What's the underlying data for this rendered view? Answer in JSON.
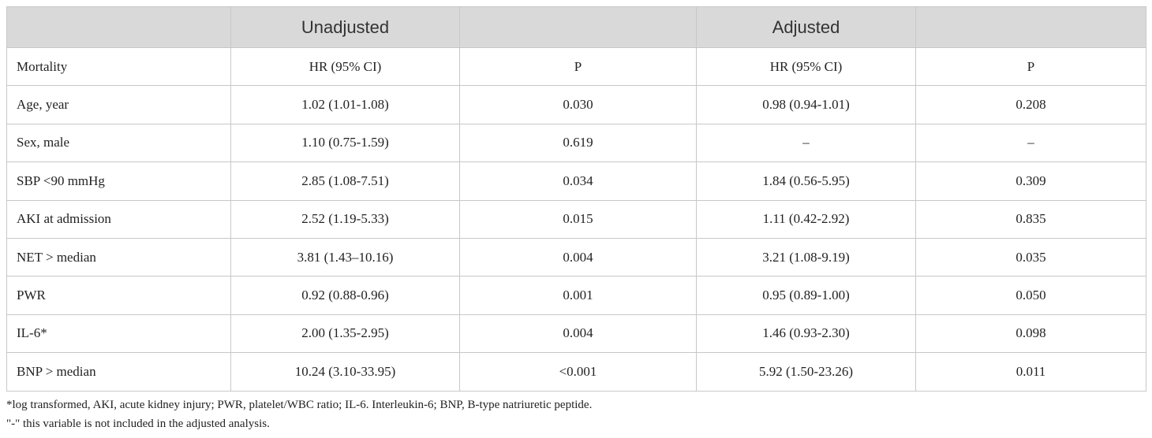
{
  "table": {
    "group_headers": [
      "",
      "Unadjusted",
      "",
      "Adjusted",
      ""
    ],
    "rows": [
      [
        "Mortality",
        "HR (95% CI)",
        "P",
        "HR (95% CI)",
        "P"
      ],
      [
        "Age, year",
        "1.02 (1.01-1.08)",
        "0.030",
        "0.98 (0.94-1.01)",
        "0.208"
      ],
      [
        "Sex, male",
        "1.10 (0.75-1.59)",
        "0.619",
        "–",
        "–"
      ],
      [
        "SBP <90 mmHg",
        "2.85 (1.08-7.51)",
        "0.034",
        "1.84 (0.56-5.95)",
        "0.309"
      ],
      [
        "AKI at admission",
        "2.52 (1.19-5.33)",
        "0.015",
        "1.11 (0.42-2.92)",
        "0.835"
      ],
      [
        "NET > median",
        "3.81 (1.43–10.16)",
        "0.004",
        "3.21 (1.08-9.19)",
        "0.035"
      ],
      [
        "PWR",
        "0.92 (0.88-0.96)",
        "0.001",
        "0.95 (0.89-1.00)",
        "0.050"
      ],
      [
        "IL-6*",
        "2.00 (1.35-2.95)",
        "0.004",
        "1.46 (0.93-2.30)",
        "0.098"
      ],
      [
        "BNP > median",
        "10.24 (3.10-33.95)",
        "<0.001",
        "5.92 (1.50-23.26)",
        "0.011"
      ]
    ]
  },
  "footnotes": [
    "*log transformed, AKI, acute kidney injury; PWR, platelet/WBC ratio; IL-6. Interleukin-6; BNP, B-type natriuretic peptide.",
    "\"-\" this variable is not included in the adjusted analysis."
  ]
}
